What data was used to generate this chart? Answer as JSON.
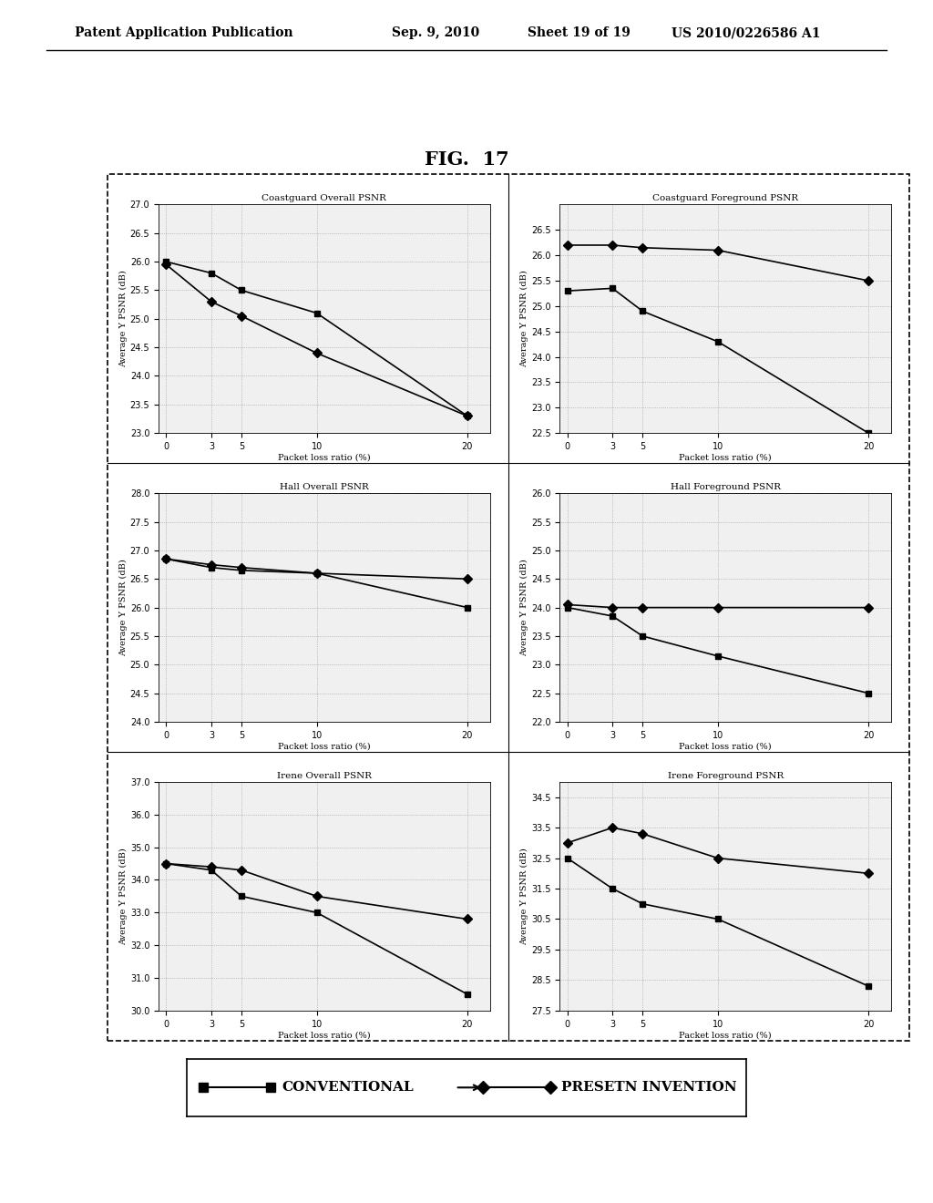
{
  "fig_title": "FIG.  17",
  "header_left": "Patent Application Publication",
  "header_mid1": "Sep. 9, 2010",
  "header_mid2": "Sheet 19 of 19",
  "header_right": "US 2010/0226586 A1",
  "x_values": [
    0,
    3,
    5,
    10,
    20
  ],
  "x_label": "Packet loss ratio (%)",
  "y_label": "Average Y PSNR (dB)",
  "plots": [
    {
      "title": "Coastguard Overall PSNR",
      "conventional": [
        26.0,
        25.8,
        25.5,
        25.1,
        23.3
      ],
      "invention": [
        25.95,
        25.3,
        25.05,
        24.4,
        23.3
      ],
      "ylim": [
        23.0,
        27.0
      ],
      "yticks": [
        23.0,
        23.5,
        24.0,
        24.5,
        25.0,
        25.5,
        26.0,
        26.5,
        27.0
      ]
    },
    {
      "title": "Coastguard Foreground PSNR",
      "conventional": [
        25.3,
        25.35,
        24.9,
        24.3,
        22.5
      ],
      "invention": [
        26.2,
        26.2,
        26.15,
        26.1,
        25.5
      ],
      "ylim": [
        22.5,
        27.0
      ],
      "yticks": [
        22.5,
        23.0,
        23.5,
        24.0,
        24.5,
        25.0,
        25.5,
        26.0,
        26.5
      ]
    },
    {
      "title": "Hall Overall PSNR",
      "conventional": [
        26.85,
        26.7,
        26.65,
        26.6,
        26.0
      ],
      "invention": [
        26.85,
        26.75,
        26.7,
        26.6,
        26.5
      ],
      "ylim": [
        24.0,
        28.0
      ],
      "yticks": [
        24.0,
        24.5,
        25.0,
        25.5,
        26.0,
        26.5,
        27.0,
        27.5,
        28.0
      ]
    },
    {
      "title": "Hall Foreground PSNR",
      "conventional": [
        24.0,
        23.85,
        23.5,
        23.15,
        22.5
      ],
      "invention": [
        24.05,
        24.0,
        24.0,
        24.0,
        24.0
      ],
      "ylim": [
        22.0,
        26.0
      ],
      "yticks": [
        22.0,
        22.5,
        23.0,
        23.5,
        24.0,
        24.5,
        25.0,
        25.5,
        26.0
      ]
    },
    {
      "title": "Irene Overall PSNR",
      "conventional": [
        34.5,
        34.3,
        33.5,
        33.0,
        30.5
      ],
      "invention": [
        34.5,
        34.4,
        34.3,
        33.5,
        32.8
      ],
      "ylim": [
        30.0,
        37.0
      ],
      "yticks": [
        30.0,
        31.0,
        32.0,
        33.0,
        34.0,
        35.0,
        36.0,
        37.0
      ]
    },
    {
      "title": "Irene Foreground PSNR",
      "conventional": [
        32.5,
        31.5,
        31.0,
        30.5,
        28.3
      ],
      "invention": [
        33.0,
        33.5,
        33.3,
        32.5,
        32.0
      ],
      "ylim": [
        27.5,
        35.0
      ],
      "yticks": [
        27.5,
        28.5,
        29.5,
        30.5,
        31.5,
        32.5,
        33.5,
        34.5
      ]
    }
  ],
  "legend_conventional": "CONVENTIONAL",
  "legend_invention": "PRESETN INVENTION",
  "background_color": "#ffffff"
}
